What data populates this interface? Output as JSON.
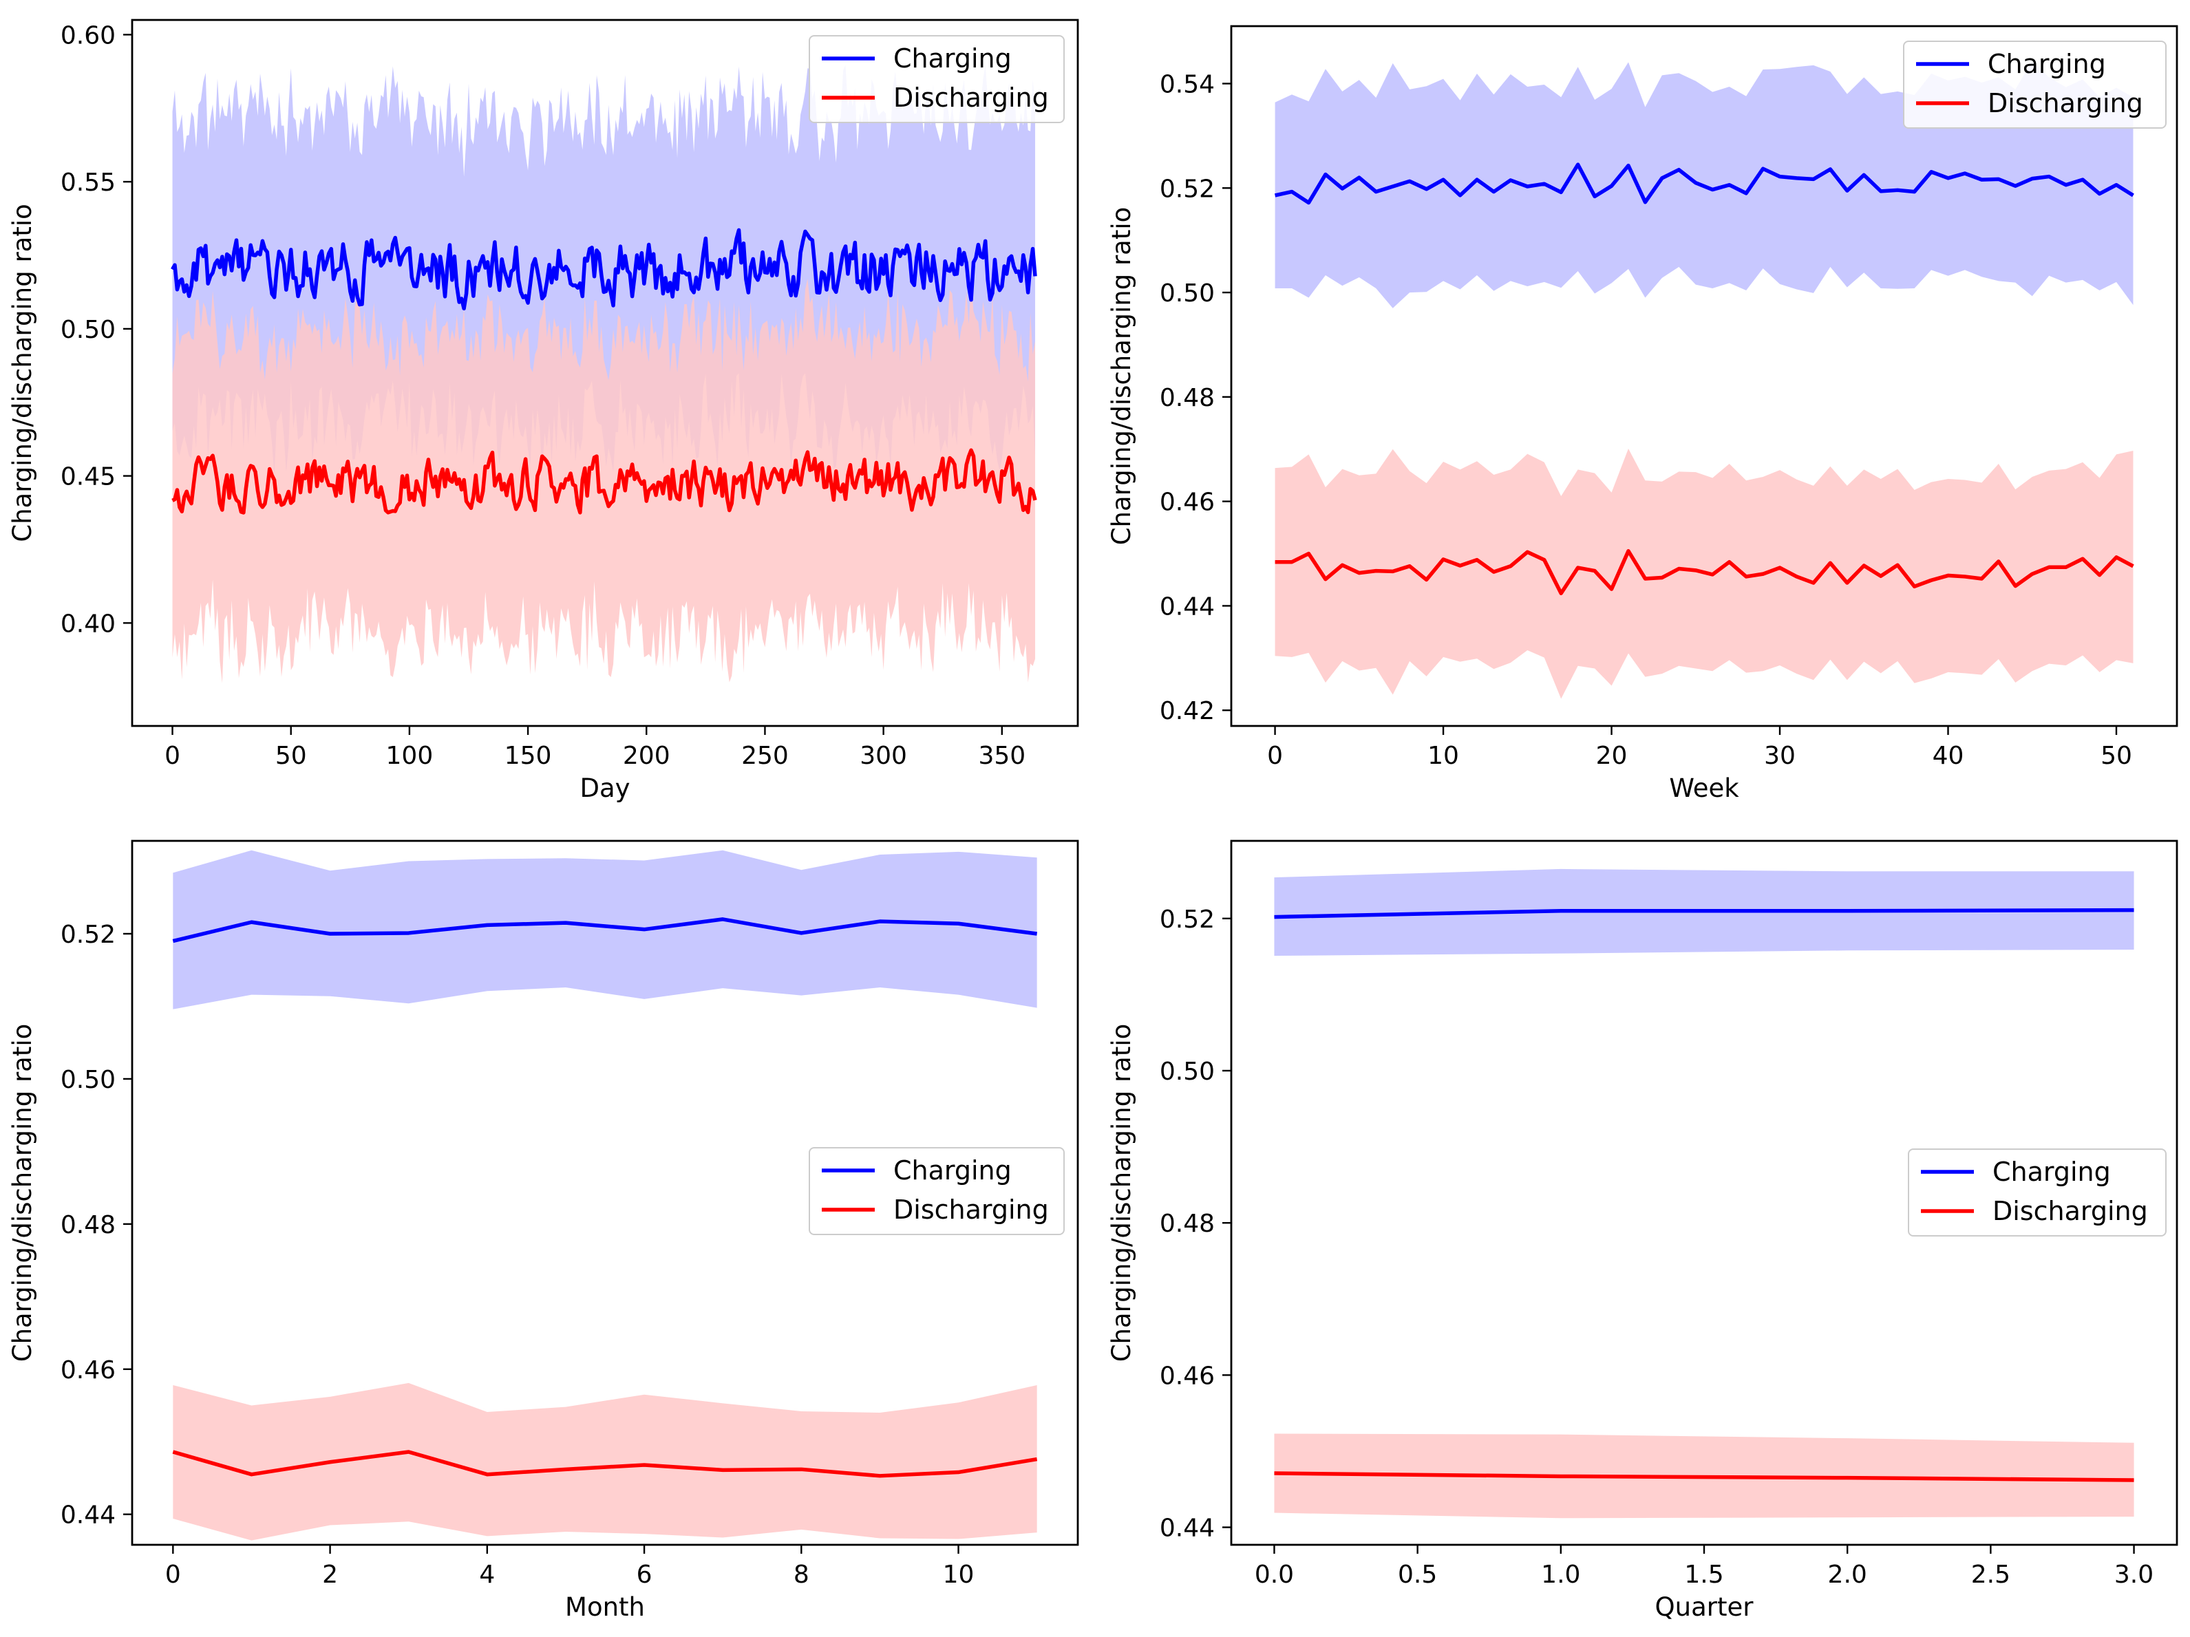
{
  "colors": {
    "charging": "#0000ff",
    "discharging": "#ff0000",
    "charging_band": "#c8c8ff",
    "discharging_band": "#ffc8c8",
    "overlap_band": "#d4a4d6"
  },
  "chart_data": [
    {
      "type": "line",
      "panel": "top-left",
      "title": "",
      "xlabel": "Day",
      "ylabel": "Charging/discharging ratio",
      "xlim": [
        -17,
        382
      ],
      "ylim": [
        0.365,
        0.605
      ],
      "xticks": [
        0,
        50,
        100,
        150,
        200,
        250,
        300,
        350
      ],
      "yticks": [
        0.4,
        0.45,
        0.5,
        0.55,
        0.6
      ],
      "ytick_labels": [
        "0.40",
        "0.45",
        "0.50",
        "0.55",
        "0.60"
      ],
      "legend": [
        "Charging",
        "Discharging"
      ],
      "legend_position": "top-right",
      "x": {
        "start": 0,
        "end": 364,
        "step": 1
      },
      "series": [
        {
          "name": "Charging",
          "mean": 0.52,
          "noise": 0.0055,
          "band_width": 0.053,
          "band_noise": 0.005,
          "seed": 11
        },
        {
          "name": "Discharging",
          "mean": 0.4475,
          "noise": 0.0045,
          "band_width": 0.051,
          "band_noise": 0.005,
          "seed": 23
        }
      ]
    },
    {
      "type": "line",
      "panel": "top-right",
      "title": "",
      "xlabel": "Week",
      "ylabel": "Charging/discharging ratio",
      "xlim": [
        -2.6,
        53.6
      ],
      "ylim": [
        0.417,
        0.551
      ],
      "xticks": [
        0,
        10,
        20,
        30,
        40,
        50
      ],
      "yticks": [
        0.42,
        0.44,
        0.46,
        0.48,
        0.5,
        0.52,
        0.54
      ],
      "ytick_labels": [
        "0.42",
        "0.44",
        "0.46",
        "0.48",
        "0.50",
        "0.52",
        "0.54"
      ],
      "legend": [
        "Charging",
        "Discharging"
      ],
      "legend_position": "top-right",
      "series": [
        {
          "name": "Charging",
          "values": [
            0.5186,
            0.5193,
            0.5172,
            0.5226,
            0.5199,
            0.522,
            0.5193,
            0.5203,
            0.5213,
            0.5198,
            0.5216,
            0.5186,
            0.5216,
            0.5193,
            0.5215,
            0.5203,
            0.5208,
            0.5192,
            0.5245,
            0.5184,
            0.5204,
            0.5243,
            0.5173,
            0.5219,
            0.5235,
            0.521,
            0.5197,
            0.5206,
            0.519,
            0.5237,
            0.5222,
            0.5219,
            0.5217,
            0.5236,
            0.5195,
            0.5225,
            0.5194,
            0.5196,
            0.5193,
            0.5231,
            0.5219,
            0.5228,
            0.5216,
            0.5217,
            0.5204,
            0.5218,
            0.5222,
            0.5206,
            0.5216,
            0.5189,
            0.5206,
            0.5186
          ],
          "upper": [
            0.5364,
            0.5379,
            0.5366,
            0.5428,
            0.5385,
            0.5407,
            0.5373,
            0.5439,
            0.5389,
            0.5395,
            0.5409,
            0.5368,
            0.5419,
            0.5379,
            0.5418,
            0.5394,
            0.5398,
            0.5374,
            0.5432,
            0.5369,
            0.539,
            0.5441,
            0.5355,
            0.5416,
            0.542,
            0.5405,
            0.5384,
            0.5394,
            0.5376,
            0.5427,
            0.5428,
            0.5432,
            0.5435,
            0.5423,
            0.538,
            0.5412,
            0.538,
            0.5385,
            0.5378,
            0.5419,
            0.5406,
            0.5413,
            0.5402,
            0.5412,
            0.5389,
            0.5443,
            0.5412,
            0.5393,
            0.5408,
            0.5374,
            0.5392,
            0.5374
          ],
          "lower": [
            0.5008,
            0.5008,
            0.499,
            0.5033,
            0.5013,
            0.5029,
            0.5008,
            0.497,
            0.5,
            0.5001,
            0.5022,
            0.5006,
            0.5033,
            0.5003,
            0.5022,
            0.5012,
            0.502,
            0.5009,
            0.5041,
            0.4998,
            0.5018,
            0.5045,
            0.499,
            0.5028,
            0.5049,
            0.5015,
            0.5008,
            0.5018,
            0.5004,
            0.5046,
            0.5016,
            0.5006,
            0.4999,
            0.5049,
            0.501,
            0.5038,
            0.5008,
            0.5007,
            0.5008,
            0.5043,
            0.5032,
            0.5043,
            0.503,
            0.5022,
            0.5019,
            0.4993,
            0.5032,
            0.5019,
            0.5024,
            0.5004,
            0.502,
            0.4976
          ]
        },
        {
          "name": "Discharging",
          "values": [
            0.4484,
            0.4484,
            0.45,
            0.4451,
            0.4478,
            0.4463,
            0.4467,
            0.4466,
            0.4476,
            0.445,
            0.4489,
            0.4477,
            0.4488,
            0.4465,
            0.4476,
            0.4503,
            0.4488,
            0.4424,
            0.4473,
            0.4467,
            0.4432,
            0.4505,
            0.4452,
            0.4454,
            0.4471,
            0.4468,
            0.446,
            0.4484,
            0.4456,
            0.4461,
            0.4473,
            0.4456,
            0.4444,
            0.4482,
            0.4444,
            0.4477,
            0.4457,
            0.4478,
            0.4437,
            0.4449,
            0.4458,
            0.4456,
            0.4452,
            0.4485,
            0.4438,
            0.4461,
            0.4474,
            0.4474,
            0.449,
            0.4459,
            0.4493,
            0.4476
          ],
          "upper": [
            0.4664,
            0.4666,
            0.469,
            0.4627,
            0.4662,
            0.465,
            0.4653,
            0.47,
            0.4658,
            0.4635,
            0.4676,
            0.4661,
            0.4677,
            0.4651,
            0.4661,
            0.4691,
            0.4675,
            0.461,
            0.4661,
            0.4654,
            0.4617,
            0.4701,
            0.464,
            0.4638,
            0.4657,
            0.4656,
            0.4645,
            0.4672,
            0.464,
            0.4647,
            0.466,
            0.4642,
            0.463,
            0.4667,
            0.463,
            0.4661,
            0.4643,
            0.4662,
            0.4622,
            0.4637,
            0.4643,
            0.4641,
            0.4636,
            0.4672,
            0.4623,
            0.4647,
            0.4659,
            0.4662,
            0.4675,
            0.4645,
            0.469,
            0.4697
          ],
          "lower": [
            0.4304,
            0.4302,
            0.431,
            0.4253,
            0.4294,
            0.4276,
            0.4281,
            0.423,
            0.4294,
            0.4265,
            0.4302,
            0.4293,
            0.4299,
            0.4279,
            0.4291,
            0.4315,
            0.4301,
            0.4222,
            0.4285,
            0.428,
            0.4247,
            0.4309,
            0.4264,
            0.427,
            0.4285,
            0.428,
            0.4275,
            0.4296,
            0.4272,
            0.4275,
            0.4286,
            0.427,
            0.4258,
            0.4297,
            0.4258,
            0.4293,
            0.4271,
            0.4294,
            0.4252,
            0.4261,
            0.4273,
            0.4271,
            0.4268,
            0.4298,
            0.4253,
            0.4275,
            0.4289,
            0.4286,
            0.4305,
            0.4273,
            0.4296,
            0.429
          ]
        }
      ]
    },
    {
      "type": "line",
      "panel": "bottom-left",
      "title": "",
      "xlabel": "Month",
      "ylabel": "Charging/discharging ratio",
      "xlim": [
        -0.52,
        11.52
      ],
      "ylim": [
        0.4358,
        0.5328
      ],
      "xticks": [
        0,
        2,
        4,
        6,
        8,
        10
      ],
      "yticks": [
        0.44,
        0.46,
        0.48,
        0.5,
        0.52
      ],
      "ytick_labels": [
        "0.44",
        "0.46",
        "0.48",
        "0.50",
        "0.52"
      ],
      "legend": [
        "Charging",
        "Discharging"
      ],
      "legend_position": "center-right",
      "series": [
        {
          "name": "Charging",
          "values": [
            0.519,
            0.5216,
            0.52,
            0.5201,
            0.5212,
            0.5215,
            0.5206,
            0.522,
            0.5201,
            0.5217,
            0.5214,
            0.52
          ],
          "upper": [
            0.5284,
            0.5315,
            0.5287,
            0.53,
            0.5303,
            0.5304,
            0.5301,
            0.5315,
            0.5288,
            0.5309,
            0.5313,
            0.5305
          ],
          "lower": [
            0.5096,
            0.5116,
            0.5114,
            0.5104,
            0.5121,
            0.5126,
            0.511,
            0.5125,
            0.5115,
            0.5126,
            0.5116,
            0.5098
          ]
        },
        {
          "name": "Discharging",
          "values": [
            0.4486,
            0.4455,
            0.4472,
            0.4486,
            0.4455,
            0.4462,
            0.4468,
            0.4461,
            0.4462,
            0.4453,
            0.4458,
            0.4476
          ],
          "upper": [
            0.4578,
            0.455,
            0.4562,
            0.4581,
            0.4541,
            0.4548,
            0.4565,
            0.4553,
            0.4542,
            0.454,
            0.4554,
            0.4578
          ],
          "lower": [
            0.4394,
            0.4364,
            0.4385,
            0.439,
            0.437,
            0.4376,
            0.4373,
            0.4368,
            0.4379,
            0.4367,
            0.4366,
            0.4375
          ]
        }
      ]
    },
    {
      "type": "line",
      "panel": "bottom-right",
      "title": "",
      "xlabel": "Quarter",
      "ylabel": "Charging/discharging ratio",
      "xlim": [
        -0.15,
        3.15
      ],
      "ylim": [
        0.4377,
        0.5302
      ],
      "xticks": [
        0.0,
        0.5,
        1.0,
        1.5,
        2.0,
        2.5,
        3.0
      ],
      "xtick_labels": [
        "0.0",
        "0.5",
        "1.0",
        "1.5",
        "2.0",
        "2.5",
        "3.0"
      ],
      "yticks": [
        0.44,
        0.46,
        0.48,
        0.5,
        0.52
      ],
      "ytick_labels": [
        "0.44",
        "0.46",
        "0.48",
        "0.50",
        "0.52"
      ],
      "legend": [
        "Charging",
        "Discharging"
      ],
      "legend_position": "center-right",
      "series": [
        {
          "name": "Charging",
          "values": [
            0.5202,
            0.521,
            0.521,
            0.5211
          ],
          "upper": [
            0.5254,
            0.5265,
            0.5262,
            0.5262
          ],
          "lower": [
            0.5151,
            0.5154,
            0.5158,
            0.5159
          ]
        },
        {
          "name": "Discharging",
          "values": [
            0.4471,
            0.4467,
            0.4465,
            0.4462
          ],
          "upper": [
            0.4523,
            0.4522,
            0.4517,
            0.4511
          ],
          "lower": [
            0.4419,
            0.4412,
            0.4413,
            0.4414
          ]
        }
      ]
    }
  ]
}
